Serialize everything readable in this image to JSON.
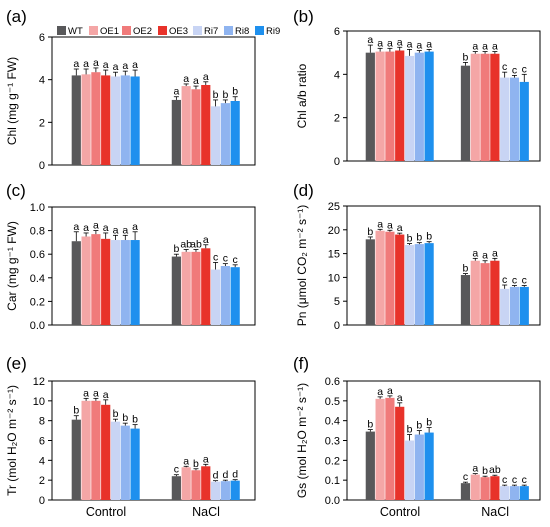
{
  "colors": {
    "WT": "#58585a",
    "OE1": "#f4a6a6",
    "OE2": "#f07a7a",
    "OE3": "#e8322a",
    "Ri7": "#c8d4f4",
    "Ri8": "#8fb4f0",
    "Ri9": "#1e90ee"
  },
  "legend": [
    "WT",
    "OE1",
    "OE2",
    "OE3",
    "Ri7",
    "Ri8",
    "Ri9"
  ],
  "chart_data": [
    {
      "type": "bar",
      "panel_label": "(a)",
      "ylabel": "Chl (mg g⁻¹ FW)",
      "ylim": [
        0,
        6
      ],
      "yticks": [
        "0",
        "2",
        "4",
        "6"
      ],
      "yticks_values": [
        0,
        2,
        4,
        6
      ],
      "categories": [
        "Control",
        "NaCl"
      ],
      "series": [
        {
          "name": "WT",
          "values": [
            4.2,
            3.05
          ],
          "errors": [
            0.3,
            0.15
          ],
          "letters": [
            "a",
            "a"
          ]
        },
        {
          "name": "OE1",
          "values": [
            4.25,
            3.7
          ],
          "errors": [
            0.25,
            0.1
          ],
          "letters": [
            "a",
            "a"
          ]
        },
        {
          "name": "OE2",
          "values": [
            4.35,
            3.55
          ],
          "errors": [
            0.2,
            0.15
          ],
          "letters": [
            "a",
            "a"
          ]
        },
        {
          "name": "OE3",
          "values": [
            4.2,
            3.75
          ],
          "errors": [
            0.25,
            0.15
          ],
          "letters": [
            "a",
            "a"
          ]
        },
        {
          "name": "Ri7",
          "values": [
            4.15,
            2.75
          ],
          "errors": [
            0.2,
            0.3
          ],
          "letters": [
            "a",
            "b"
          ]
        },
        {
          "name": "Ri8",
          "values": [
            4.2,
            2.9
          ],
          "errors": [
            0.2,
            0.15
          ],
          "letters": [
            "a",
            "b"
          ]
        },
        {
          "name": "Ri9",
          "values": [
            4.15,
            3.0
          ],
          "errors": [
            0.3,
            0.2
          ],
          "letters": [
            "a",
            "b"
          ]
        }
      ]
    },
    {
      "type": "bar",
      "panel_label": "(b)",
      "ylabel": "Chl a/b ratio",
      "ylim": [
        0,
        6
      ],
      "yticks": [
        "0",
        "2",
        "4",
        "6"
      ],
      "yticks_values": [
        0,
        2,
        4,
        6
      ],
      "categories": [
        "Control",
        "NaCl"
      ],
      "series": [
        {
          "name": "WT",
          "values": [
            5.0,
            4.4
          ],
          "errors": [
            0.35,
            0.15
          ],
          "letters": [
            "a",
            "b"
          ]
        },
        {
          "name": "OE1",
          "values": [
            5.05,
            4.95
          ],
          "errors": [
            0.15,
            0.1
          ],
          "letters": [
            "a",
            "a"
          ]
        },
        {
          "name": "OE2",
          "values": [
            5.05,
            4.95
          ],
          "errors": [
            0.15,
            0.1
          ],
          "letters": [
            "a",
            "a"
          ]
        },
        {
          "name": "OE3",
          "values": [
            5.1,
            4.95
          ],
          "errors": [
            0.15,
            0.1
          ],
          "letters": [
            "a",
            "a"
          ]
        },
        {
          "name": "Ri7",
          "values": [
            4.85,
            3.85
          ],
          "errors": [
            0.3,
            0.25
          ],
          "letters": [
            "a",
            "c"
          ]
        },
        {
          "name": "Ri8",
          "values": [
            5.0,
            3.85
          ],
          "errors": [
            0.1,
            0.1
          ],
          "letters": [
            "a",
            "c"
          ]
        },
        {
          "name": "Ri9",
          "values": [
            5.05,
            3.65
          ],
          "errors": [
            0.1,
            0.35
          ],
          "letters": [
            "a",
            "c"
          ]
        }
      ]
    },
    {
      "type": "bar",
      "panel_label": "(c)",
      "ylabel": "Car (mg g⁻¹ FW)",
      "ylim": [
        0,
        1.0
      ],
      "yticks": [
        "0.0",
        "0.2",
        "0.4",
        "0.6",
        "0.8",
        "1.0"
      ],
      "yticks_values": [
        0,
        0.2,
        0.4,
        0.6,
        0.8,
        1.0
      ],
      "categories": [
        "Control",
        "NaCl"
      ],
      "series": [
        {
          "name": "WT",
          "values": [
            0.71,
            0.58
          ],
          "errors": [
            0.08,
            0.02
          ],
          "letters": [
            "a",
            "b"
          ]
        },
        {
          "name": "OE1",
          "values": [
            0.75,
            0.62
          ],
          "errors": [
            0.03,
            0.02
          ],
          "letters": [
            "a",
            "ab"
          ]
        },
        {
          "name": "OE2",
          "values": [
            0.77,
            0.62
          ],
          "errors": [
            0.03,
            0.02
          ],
          "letters": [
            "a",
            "ab"
          ]
        },
        {
          "name": "OE3",
          "values": [
            0.73,
            0.65
          ],
          "errors": [
            0.05,
            0.03
          ],
          "letters": [
            "a",
            "a"
          ]
        },
        {
          "name": "Ri7",
          "values": [
            0.72,
            0.47
          ],
          "errors": [
            0.04,
            0.06
          ],
          "letters": [
            "a",
            "c"
          ]
        },
        {
          "name": "Ri8",
          "values": [
            0.72,
            0.5
          ],
          "errors": [
            0.04,
            0.02
          ],
          "letters": [
            "a",
            "c"
          ]
        },
        {
          "name": "Ri9",
          "values": [
            0.72,
            0.49
          ],
          "errors": [
            0.07,
            0.02
          ],
          "letters": [
            "a",
            "c"
          ]
        }
      ]
    },
    {
      "type": "bar",
      "panel_label": "(d)",
      "ylabel": "Pn (μmol CO₂ m⁻² s⁻¹)",
      "ylim": [
        0,
        25
      ],
      "yticks": [
        "0",
        "5",
        "10",
        "15",
        "20",
        "25"
      ],
      "yticks_values": [
        0,
        5,
        10,
        15,
        20,
        25
      ],
      "categories": [
        "Control",
        "NaCl"
      ],
      "series": [
        {
          "name": "WT",
          "values": [
            18.0,
            10.5
          ],
          "errors": [
            0.5,
            0.3
          ],
          "letters": [
            "b",
            "b"
          ]
        },
        {
          "name": "OE1",
          "values": [
            19.8,
            13.5
          ],
          "errors": [
            0.3,
            0.5
          ],
          "letters": [
            "a",
            "a"
          ]
        },
        {
          "name": "OE2",
          "values": [
            19.6,
            13.0
          ],
          "errors": [
            0.3,
            0.5
          ],
          "letters": [
            "a",
            "a"
          ]
        },
        {
          "name": "OE3",
          "values": [
            19.0,
            13.5
          ],
          "errors": [
            0.3,
            0.5
          ],
          "letters": [
            "a",
            "a"
          ]
        },
        {
          "name": "Ri7",
          "values": [
            16.8,
            7.6
          ],
          "errors": [
            0.3,
            0.8
          ],
          "letters": [
            "b",
            "c"
          ]
        },
        {
          "name": "Ri8",
          "values": [
            17.0,
            8.0
          ],
          "errors": [
            0.3,
            0.3
          ],
          "letters": [
            "b",
            "c"
          ]
        },
        {
          "name": "Ri9",
          "values": [
            17.2,
            8.0
          ],
          "errors": [
            0.3,
            0.3
          ],
          "letters": [
            "b",
            "c"
          ]
        }
      ]
    },
    {
      "type": "bar",
      "panel_label": "(e)",
      "ylabel": "Tr (mol H₂O m⁻² s⁻¹)",
      "ylim": [
        0,
        12
      ],
      "yticks": [
        "0",
        "2",
        "4",
        "6",
        "8",
        "10",
        "12"
      ],
      "yticks_values": [
        0,
        2,
        4,
        6,
        8,
        10,
        12
      ],
      "categories": [
        "Control",
        "NaCl"
      ],
      "series": [
        {
          "name": "WT",
          "values": [
            8.1,
            2.4
          ],
          "errors": [
            0.4,
            0.15
          ],
          "letters": [
            "b",
            "c"
          ]
        },
        {
          "name": "OE1",
          "values": [
            10.0,
            3.3
          ],
          "errors": [
            0.25,
            0.1
          ],
          "letters": [
            "a",
            "a"
          ]
        },
        {
          "name": "OE2",
          "values": [
            10.0,
            3.0
          ],
          "errors": [
            0.25,
            0.15
          ],
          "letters": [
            "a",
            "b"
          ]
        },
        {
          "name": "OE3",
          "values": [
            9.6,
            3.4
          ],
          "errors": [
            0.5,
            0.2
          ],
          "letters": [
            "a",
            "a"
          ]
        },
        {
          "name": "Ri7",
          "values": [
            7.9,
            1.85
          ],
          "errors": [
            0.25,
            0.1
          ],
          "letters": [
            "b",
            "d"
          ]
        },
        {
          "name": "Ri8",
          "values": [
            7.5,
            1.9
          ],
          "errors": [
            0.25,
            0.1
          ],
          "letters": [
            "b",
            "d"
          ]
        },
        {
          "name": "Ri9",
          "values": [
            7.2,
            1.95
          ],
          "errors": [
            0.4,
            0.1
          ],
          "letters": [
            "b",
            "d"
          ]
        }
      ]
    },
    {
      "type": "bar",
      "panel_label": "(f)",
      "ylabel": "Gs (mol H₂O m⁻² s⁻¹)",
      "ylim": [
        0,
        0.6
      ],
      "yticks": [
        "0.0",
        "0.1",
        "0.2",
        "0.3",
        "0.4",
        "0.5",
        "0.6"
      ],
      "yticks_values": [
        0,
        0.1,
        0.2,
        0.3,
        0.4,
        0.5,
        0.6
      ],
      "categories": [
        "Control",
        "NaCl"
      ],
      "series": [
        {
          "name": "WT",
          "values": [
            0.345,
            0.085
          ],
          "errors": [
            0.01,
            0.005
          ],
          "letters": [
            "b",
            "c"
          ]
        },
        {
          "name": "OE1",
          "values": [
            0.51,
            0.128
          ],
          "errors": [
            0.01,
            0.005
          ],
          "letters": [
            "a",
            "a"
          ]
        },
        {
          "name": "OE2",
          "values": [
            0.515,
            0.115
          ],
          "errors": [
            0.01,
            0.005
          ],
          "letters": [
            "a",
            "b"
          ]
        },
        {
          "name": "OE3",
          "values": [
            0.47,
            0.12
          ],
          "errors": [
            0.02,
            0.005
          ],
          "letters": [
            "a",
            "ab"
          ]
        },
        {
          "name": "Ri7",
          "values": [
            0.3,
            0.07
          ],
          "errors": [
            0.03,
            0.005
          ],
          "letters": [
            "b",
            "c"
          ]
        },
        {
          "name": "Ri8",
          "values": [
            0.33,
            0.07
          ],
          "errors": [
            0.02,
            0.005
          ],
          "letters": [
            "b",
            "c"
          ]
        },
        {
          "name": "Ri9",
          "values": [
            0.34,
            0.07
          ],
          "errors": [
            0.025,
            0.005
          ],
          "letters": [
            "b",
            "c"
          ]
        }
      ]
    }
  ]
}
